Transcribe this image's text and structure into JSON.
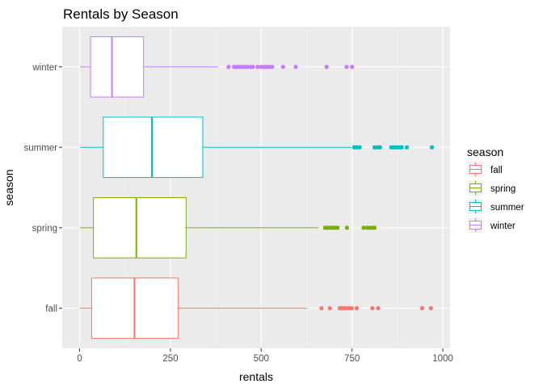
{
  "chart_data": {
    "type": "boxplot",
    "orientation": "horizontal",
    "title": "Rentals by Season",
    "xlabel": "rentals",
    "ylabel": "season",
    "xlim": [
      -48,
      1020
    ],
    "x_ticks": [
      0,
      250,
      500,
      750,
      1000
    ],
    "x_tick_labels": [
      "0",
      "250",
      "500",
      "750",
      "1000"
    ],
    "grid": true,
    "legend_title": "season",
    "legend_position": "right",
    "categories": [
      "winter",
      "summer",
      "spring",
      "fall"
    ],
    "series": [
      {
        "name": "fall",
        "color": "#f8766d",
        "min": 0,
        "q1": 33,
        "median": 151,
        "q3": 271,
        "max": 626,
        "outliers": [
          666,
          689,
          716,
          722,
          728,
          733,
          740,
          749,
          763,
          806,
          822,
          943,
          967
        ]
      },
      {
        "name": "spring",
        "color": "#7cae00",
        "min": 1,
        "q1": 38,
        "median": 156,
        "q3": 293,
        "max": 658,
        "outliers": [
          676,
          683,
          690,
          697,
          703,
          710,
          736,
          782,
          792,
          800,
          808,
          812
        ]
      },
      {
        "name": "summer",
        "color": "#00bfc4",
        "min": 1,
        "q1": 65,
        "median": 199,
        "q3": 339,
        "max": 748,
        "outliers": [
          756,
          763,
          771,
          812,
          820,
          827,
          858,
          865,
          872,
          880,
          887,
          901,
          970
        ]
      },
      {
        "name": "winter",
        "color": "#c77cff",
        "min": 1,
        "q1": 30,
        "median": 89,
        "q3": 176,
        "max": 381,
        "outliers": [
          410,
          425,
          432,
          440,
          447,
          455,
          462,
          470,
          477,
          490,
          500,
          508,
          515,
          522,
          530,
          560,
          595,
          680,
          735,
          750
        ]
      }
    ]
  }
}
